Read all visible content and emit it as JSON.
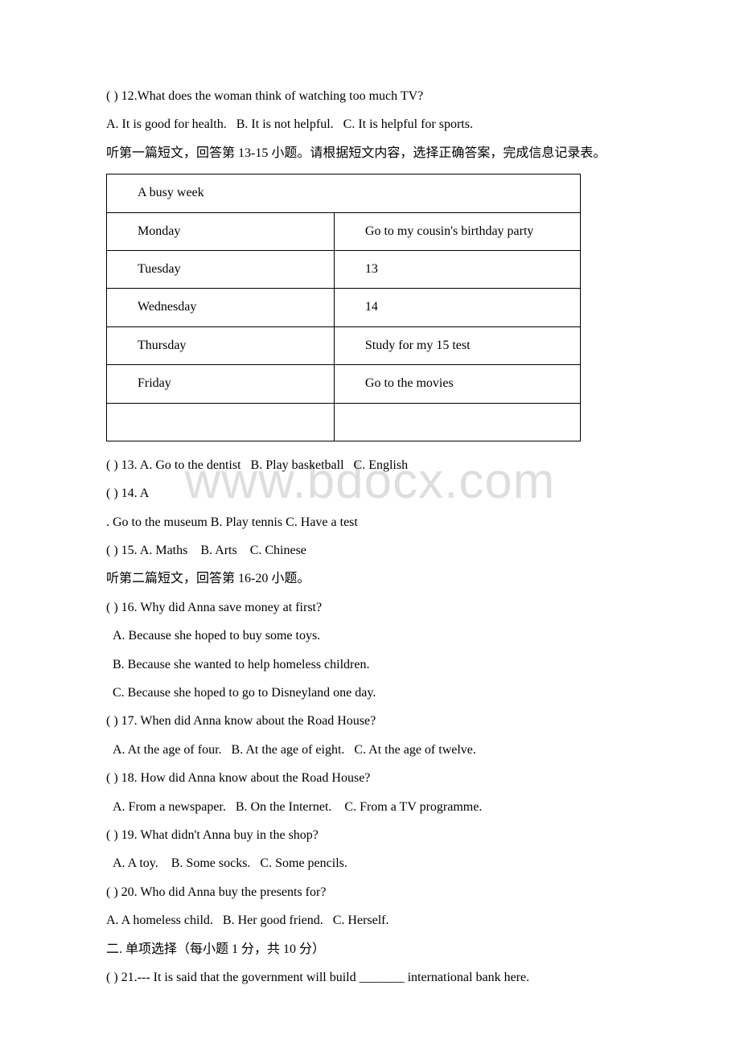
{
  "watermark": "www.bdocx.com",
  "q12": {
    "prefix": "( ) 12.",
    "question": "What does the woman think of watching too much TV?",
    "optA": "A. It is good for health.",
    "optB": "B. It is not helpful.",
    "optC": "C. It is helpful for sports."
  },
  "passage1_instruction": "听第一篇短文，回答第 13-15 小题。请根据短文内容，选择正确答案，完成信息记录表。",
  "table": {
    "header": "A busy week",
    "rows": [
      {
        "day": "Monday",
        "activity": "Go to my cousin's birthday party"
      },
      {
        "day": "Tuesday",
        "activity": "13"
      },
      {
        "day": "Wednesday",
        "activity": "14"
      },
      {
        "day": "Thursday",
        "activity": "Study for my  15  test"
      },
      {
        "day": "Friday",
        "activity": "Go to the movies"
      }
    ]
  },
  "q13": {
    "prefix": "( ) 13.",
    "optA": "A. Go to the dentist",
    "optB": "B. Play basketball",
    "optC": "C. English"
  },
  "q14": {
    "prefix": "( ) 14.",
    "suffix": "A",
    "line2": ". Go to the museum    B. Play tennis    C. Have a test"
  },
  "q15": {
    "prefix": "( ) 15.",
    "optA": "A. Maths",
    "optB": "B. Arts",
    "optC": "C. Chinese"
  },
  "passage2_instruction": "听第二篇短文，回答第 16-20 小题。",
  "q16": {
    "prefix": "( ) 16.",
    "question": "Why did Anna save money at first?",
    "optA": "A. Because she hoped to buy some toys.",
    "optB": "B. Because she wanted to help homeless children.",
    "optC": "C. Because she hoped to go to Disneyland one day."
  },
  "q17": {
    "prefix": "( ) 17.",
    "question": "When did Anna know about the Road House?",
    "optA": "A. At the age of four.",
    "optB": "B. At the age of eight.",
    "optC": "C. At the age of twelve."
  },
  "q18": {
    "prefix": "( ) 18.",
    "question": "How did Anna know about the Road House?",
    "optA": "A. From a newspaper.",
    "optB": "B. On the Internet.",
    "optC": "C. From a TV programme."
  },
  "q19": {
    "prefix": "( ) 19.",
    "question": "What didn't Anna buy in the shop?",
    "optA": "A. A toy.",
    "optB": "B. Some socks.",
    "optC": "C. Some pencils."
  },
  "q20": {
    "prefix": "( ) 20.",
    "question": "Who did Anna buy the presents for?",
    "optA": "A. A homeless child.",
    "optB": "B. Her good friend.",
    "optC": "C. Herself."
  },
  "section2_title": "二. 单项选择（每小题 1 分，共 10 分）",
  "q21": {
    "prefix": "(   ) 21.",
    "text": "--- It is said that the government will build _______ international bank here."
  }
}
